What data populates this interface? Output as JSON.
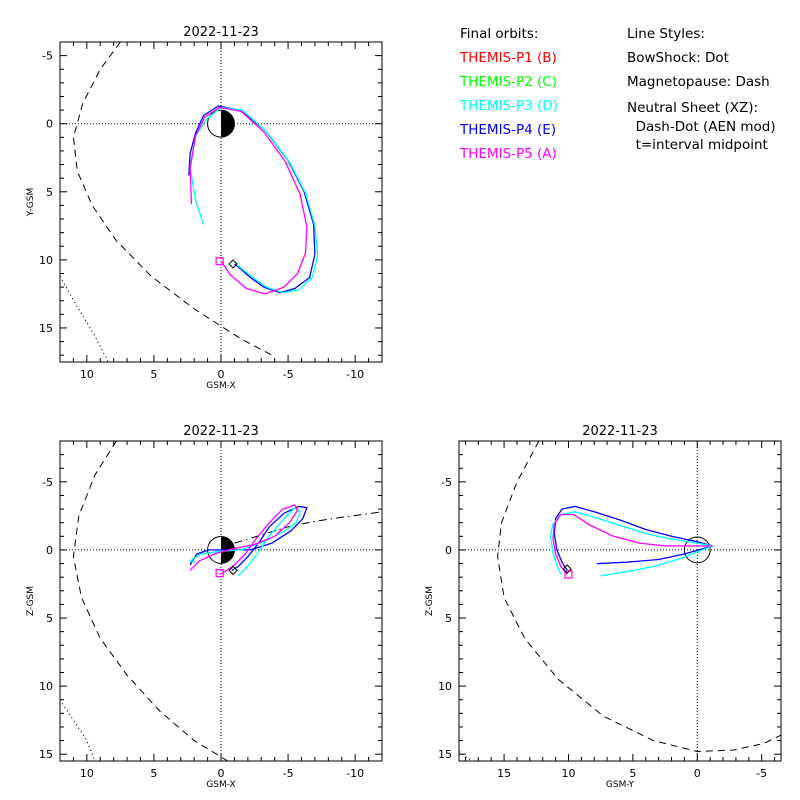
{
  "legend": {
    "title": "Final orbits:",
    "items": [
      {
        "label": "THEMIS-P1 (B)",
        "color": "#ff0000"
      },
      {
        "label": "THEMIS-P2 (C)",
        "color": "#00ff00"
      },
      {
        "label": "THEMIS-P3 (D)",
        "color": "#00ffff"
      },
      {
        "label": "THEMIS-P4 (E)",
        "color": "#0000ff"
      },
      {
        "label": "THEMIS-P5 (A)",
        "color": "#ff00ff"
      }
    ]
  },
  "styles": {
    "title": "Line Styles:",
    "lines": [
      "BowShock: Dot",
      "Magnetopause: Dash",
      "Neutral Sheet (XZ):",
      "  Dash-Dot (AEN mod)",
      "  t=interval midpoint"
    ]
  },
  "chart_data": [
    {
      "type": "line",
      "title": "2022-11-23",
      "xlabel": "GSM-X",
      "ylabel": "Y-GSM",
      "xlim": [
        12,
        -12
      ],
      "ylim": [
        -6,
        17.5
      ],
      "xticks": [
        10,
        5,
        0,
        -5,
        -10
      ],
      "yticks": [
        -5,
        0,
        5,
        10,
        15
      ],
      "earth": true,
      "series": [
        {
          "name": "THEMIS-P4 (E)",
          "color": "#0000ff",
          "x": [
            2.4,
            2.3,
            1.9,
            1.3,
            0.2,
            -1.4,
            -3.3,
            -5.0,
            -6.2,
            -6.9,
            -7.0,
            -6.6,
            -5.5,
            -4.4,
            -3.2,
            -2.2,
            -1.5,
            -1.0
          ],
          "y": [
            3.8,
            2.2,
            0.7,
            -0.6,
            -1.3,
            -1.0,
            0.5,
            2.7,
            5.0,
            7.4,
            9.6,
            11.3,
            12.1,
            12.4,
            12.0,
            11.3,
            10.7,
            10.3
          ]
        },
        {
          "name": "THEMIS-P3 (D)",
          "color": "#00ffff",
          "x": [
            1.3,
            1.9,
            2.3,
            1.9,
            1.1,
            0.0,
            -1.6,
            -3.4,
            -5.1,
            -6.3,
            -7.0,
            -7.2,
            -6.8,
            -5.8,
            -4.6,
            -3.4,
            -2.4,
            -1.6,
            -1.0
          ],
          "y": [
            7.4,
            5.6,
            3.2,
            0.9,
            -0.3,
            -1.2,
            -1.0,
            0.6,
            2.8,
            5.1,
            7.5,
            9.7,
            11.3,
            12.2,
            12.4,
            12.0,
            11.3,
            10.7,
            10.2
          ]
        },
        {
          "name": "THEMIS-P5 (A)",
          "color": "#ff00ff",
          "x": [
            2.2,
            2.3,
            1.9,
            1.2,
            0.1,
            -1.5,
            -3.2,
            -4.8,
            -5.9,
            -6.4,
            -6.3,
            -5.7,
            -4.7,
            -3.3,
            -1.9,
            -0.7,
            0.0
          ],
          "y": [
            5.9,
            3.3,
            0.9,
            -0.5,
            -1.2,
            -0.9,
            0.6,
            2.8,
            5.2,
            7.6,
            9.5,
            11.0,
            12.0,
            12.5,
            12.1,
            11.1,
            10.1
          ]
        }
      ],
      "markers": [
        {
          "shape": "square",
          "color": "#ff00ff",
          "x": 0.1,
          "y": 10.1
        },
        {
          "shape": "diamond",
          "color": "#000000",
          "x": -0.9,
          "y": 10.3
        }
      ],
      "boundaries": [
        {
          "name": "Magnetopause",
          "style": "dash",
          "x": [
            7.5,
            9.0,
            10.3,
            11.0,
            10.7,
            9.6,
            7.8,
            5.2,
            2.0,
            -1.5,
            -4.0
          ],
          "y": [
            -6.0,
            -4.0,
            -1.5,
            1.0,
            3.5,
            6.0,
            8.6,
            11.2,
            13.6,
            15.8,
            17.1
          ]
        },
        {
          "name": "BowShock",
          "style": "dot",
          "x": [
            12.0,
            10.8,
            9.4,
            8.4
          ],
          "y": [
            11.2,
            13.3,
            15.6,
            17.5
          ]
        }
      ]
    },
    {
      "type": "line",
      "title": "2022-11-23",
      "xlabel": "GSM-X",
      "ylabel": "Z-GSM",
      "xlim": [
        12,
        -12
      ],
      "ylim": [
        -8,
        15.5
      ],
      "xticks": [
        10,
        5,
        0,
        -5,
        -10
      ],
      "yticks": [
        -5,
        0,
        5,
        10,
        15
      ],
      "earth": true,
      "series": [
        {
          "name": "THEMIS-P4 (E)",
          "color": "#0000ff",
          "x": [
            2.3,
            1.8,
            0.9,
            -0.5,
            -2.2,
            -3.8,
            -5.2,
            -6.1,
            -6.4,
            -5.8,
            -4.7,
            -3.6,
            -2.8,
            -2.0,
            -1.3,
            -0.8
          ],
          "y": [
            1.1,
            0.3,
            0.0,
            0.0,
            0.0,
            -0.5,
            -1.4,
            -2.3,
            -3.1,
            -3.2,
            -2.7,
            -1.7,
            -0.5,
            0.5,
            1.2,
            1.5
          ]
        },
        {
          "name": "THEMIS-P3 (D)",
          "color": "#00ffff",
          "x": [
            1.9,
            2.3,
            1.5,
            0.1,
            -1.5,
            -3.2,
            -4.6,
            -5.6,
            -5.9,
            -5.5,
            -4.6,
            -3.5,
            -2.7,
            -1.9,
            -1.3
          ],
          "y": [
            0.9,
            0.8,
            0.3,
            0.1,
            0.0,
            -0.6,
            -1.3,
            -2.0,
            -2.8,
            -3.1,
            -2.2,
            -0.9,
            0.3,
            1.3,
            1.9
          ]
        },
        {
          "name": "THEMIS-P5 (A)",
          "color": "#ff00ff",
          "x": [
            2.3,
            1.6,
            0.5,
            -0.9,
            -2.5,
            -4.0,
            -5.1,
            -5.7,
            -5.5,
            -4.6,
            -3.6,
            -2.6,
            -1.8,
            -1.0,
            -0.3,
            0.1
          ],
          "y": [
            1.5,
            0.8,
            0.3,
            -0.1,
            -0.4,
            -1.0,
            -2.0,
            -2.9,
            -3.3,
            -3.0,
            -2.0,
            -0.8,
            0.3,
            1.1,
            1.6,
            1.8
          ]
        }
      ],
      "markers": [
        {
          "shape": "square",
          "color": "#ff00ff",
          "x": 0.1,
          "y": 1.7
        },
        {
          "shape": "diamond",
          "color": "#000000",
          "x": -0.9,
          "y": 1.5
        }
      ],
      "boundaries": [
        {
          "name": "Magnetopause",
          "style": "dash",
          "x": [
            7.8,
            9.4,
            10.6,
            11.0,
            10.4,
            9.0,
            7.0,
            4.6,
            2.0,
            -0.5
          ],
          "y": [
            -8.0,
            -5.5,
            -2.5,
            0.5,
            3.5,
            6.5,
            9.2,
            11.8,
            14.0,
            15.5
          ]
        },
        {
          "name": "BowShock",
          "style": "dot",
          "x": [
            12.0,
            11.0,
            10.0,
            9.4
          ],
          "y": [
            11.0,
            12.5,
            14.0,
            15.5
          ]
        },
        {
          "name": "Neutral Sheet",
          "style": "dashdot",
          "x": [
            -1.0,
            -3.0,
            -5.0,
            -7.0,
            -9.0,
            -12.0
          ],
          "y": [
            -0.5,
            -1.1,
            -1.7,
            -2.1,
            -2.4,
            -2.8
          ]
        }
      ]
    },
    {
      "type": "line",
      "title": "2022-11-23",
      "xlabel": "GSM-Y",
      "ylabel": "Z-GSM",
      "xlim": [
        18.5,
        -6.5
      ],
      "ylim": [
        -8,
        15.5
      ],
      "xticks": [
        15,
        10,
        5,
        0,
        -5
      ],
      "yticks": [
        -5,
        0,
        5,
        10,
        15
      ],
      "earth_outline": true,
      "series": [
        {
          "name": "THEMIS-P4 (E)",
          "color": "#0000ff",
          "x": [
            7.8,
            5.5,
            3.0,
            1.0,
            -1.2,
            0.0,
            2.0,
            4.0,
            6.0,
            8.0,
            9.5,
            10.5,
            11.0,
            11.1,
            10.9,
            10.5,
            10.1
          ],
          "y": [
            1.0,
            0.9,
            0.7,
            0.3,
            -0.3,
            -0.6,
            -1.0,
            -1.5,
            -2.2,
            -2.8,
            -3.2,
            -3.0,
            -2.3,
            -1.2,
            0.0,
            0.9,
            1.5
          ]
        },
        {
          "name": "THEMIS-P3 (D)",
          "color": "#00ffff",
          "x": [
            7.5,
            5.5,
            3.3,
            1.2,
            -1.2,
            0.0,
            2.0,
            4.0,
            6.0,
            8.0,
            9.5,
            10.6,
            11.2,
            11.4,
            11.2,
            10.9,
            10.6
          ],
          "y": [
            1.9,
            1.6,
            1.2,
            0.6,
            -0.3,
            -0.5,
            -0.8,
            -1.2,
            -1.8,
            -2.4,
            -2.8,
            -2.6,
            -1.9,
            -1.0,
            0.2,
            1.1,
            1.8
          ]
        },
        {
          "name": "THEMIS-P5 (A)",
          "color": "#ff00ff",
          "x": [
            -1.2,
            0.5,
            2.5,
            4.5,
            6.5,
            8.3,
            9.6,
            10.6,
            11.1,
            11.2,
            11.0,
            10.6,
            10.1
          ],
          "y": [
            -0.3,
            -0.3,
            -0.3,
            -0.5,
            -1.0,
            -1.8,
            -2.6,
            -2.6,
            -1.9,
            -0.8,
            0.3,
            1.2,
            1.8
          ]
        }
      ],
      "markers": [
        {
          "shape": "square",
          "color": "#ff00ff",
          "x": 10.0,
          "y": 1.8
        },
        {
          "shape": "diamond",
          "color": "#000000",
          "x": 10.1,
          "y": 1.4
        }
      ],
      "boundaries": [
        {
          "name": "Magnetopause",
          "style": "dash",
          "x": [
            12.3,
            14.0,
            15.2,
            15.5,
            15.0,
            13.4,
            10.8,
            7.3,
            3.4,
            0.0,
            -2.8,
            -5.2,
            -6.5
          ],
          "y": [
            -8.0,
            -5.0,
            -2.0,
            0.5,
            3.5,
            6.5,
            9.5,
            12.2,
            14.0,
            14.8,
            14.7,
            14.2,
            13.6
          ]
        },
        {
          "name": "BowShock",
          "style": "dot",
          "x": [
            18.5,
            17.5
          ],
          "y": [
            14.8,
            15.5
          ]
        }
      ]
    }
  ]
}
